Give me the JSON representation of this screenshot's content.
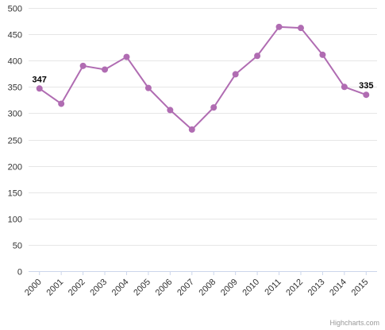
{
  "chart_data": {
    "type": "line",
    "x": [
      "2000",
      "2001",
      "2002",
      "2003",
      "2004",
      "2005",
      "2006",
      "2007",
      "2008",
      "2009",
      "2010",
      "2011",
      "2012",
      "2013",
      "2014",
      "2015"
    ],
    "values": [
      347,
      318,
      390,
      383,
      407,
      348,
      306,
      269,
      311,
      374,
      409,
      464,
      462,
      411,
      350,
      335
    ],
    "ylim": [
      0,
      500
    ],
    "yticks": [
      0,
      50,
      100,
      150,
      200,
      250,
      300,
      350,
      400,
      450,
      500
    ],
    "data_labels": {
      "2000": "347",
      "2015": "335"
    },
    "grid": true,
    "legend": "none",
    "colors": {
      "series": "#b06cb2",
      "grid": "#e6e6e6",
      "axis": "#ccd6eb",
      "background": "#ffffff"
    }
  },
  "credits": {
    "text": "Highcharts.com"
  }
}
